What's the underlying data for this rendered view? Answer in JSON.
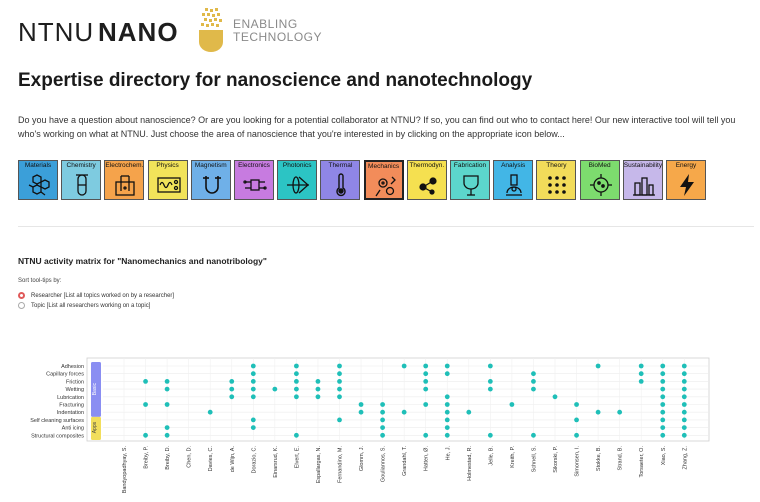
{
  "logo": {
    "ntnu": "NTNU",
    "nano": "NANO",
    "tagline_line1": "ENABLING",
    "tagline_line2": "TECHNOLOGY"
  },
  "page": {
    "title": "Expertise directory for nanoscience and nanotechnology",
    "intro": "Do you have a question about nanoscience? Or are you looking for a potential collaborator at NTNU? If so, you can find out who to contact here! Our new interactive tool will tell you who's working on what at NTNU. Just choose the area of nanoscience that you're interested in by clicking on the appropriate icon below..."
  },
  "areas": [
    {
      "label": "Materials",
      "color": "#3b9fd9",
      "icon": "hexagon-lattice-icon"
    },
    {
      "label": "Chemistry",
      "color": "#7ecbe0",
      "icon": "test-tube-icon"
    },
    {
      "label": "Electrochem.",
      "color": "#f5a34b",
      "icon": "electrochemical-cell-icon"
    },
    {
      "label": "Physics",
      "color": "#f2e35a",
      "icon": "oscilloscope-icon"
    },
    {
      "label": "Magnetism",
      "color": "#6fb0e8",
      "icon": "magnet-icon"
    },
    {
      "label": "Electronics",
      "color": "#c77be0",
      "icon": "circuit-icon"
    },
    {
      "label": "Photonics",
      "color": "#2cc4c4",
      "icon": "lens-beam-icon"
    },
    {
      "label": "Thermal",
      "color": "#8f86e6",
      "icon": "thermometer-icon"
    },
    {
      "label": "Mechanics",
      "color": "#f28c5a",
      "icon": "gears-icon"
    },
    {
      "label": "Thermodyn.",
      "color": "#f5e050",
      "icon": "molecules-icon"
    },
    {
      "label": "Fabrication",
      "color": "#5cd6cc",
      "icon": "wafer-icon"
    },
    {
      "label": "Analysis",
      "color": "#42b6e6",
      "icon": "microscope-icon"
    },
    {
      "label": "Theory",
      "color": "#f2dc5a",
      "icon": "dot-grid-icon"
    },
    {
      "label": "BioMed",
      "color": "#7ddc6e",
      "icon": "virus-icon"
    },
    {
      "label": "Sustainability",
      "color": "#c6b8ea",
      "icon": "city-icon"
    },
    {
      "label": "Energy",
      "color": "#f6a84a",
      "icon": "lightning-icon"
    }
  ],
  "active_area": "Mechanics",
  "matrix": {
    "title": "NTNU activity matrix for \"Nanomechanics and nanotribology\"",
    "sort_label": "Sort tool-tips by:",
    "options": [
      {
        "label": "Researcher [List all topics worked on by a researcher]",
        "selected": true
      },
      {
        "label": "Topic [List all researchers working on a topic]",
        "selected": false
      }
    ],
    "group_labels": {
      "basic": "Basic",
      "apps": "Apps"
    },
    "colors": {
      "dot": "#1fbfb8",
      "basic": "#8a8ef2",
      "apps": "#f2de5c"
    }
  },
  "chart_data": {
    "type": "scatter",
    "title": "NTNU activity matrix for \"Nanomechanics and nanotribology\"",
    "topics": [
      "Adhesion",
      "Capillary forces",
      "Friction",
      "Wetting",
      "Lubrication",
      "Fracturing",
      "Indentation",
      "Self cleaning surfaces",
      "Anti icing",
      "Structural composites"
    ],
    "topic_groups": {
      "Basic": [
        "Adhesion",
        "Capillary forces",
        "Friction",
        "Wetting",
        "Lubrication",
        "Fracturing",
        "Indentation"
      ],
      "Apps": [
        "Self cleaning surfaces",
        "Anti icing",
        "Structural composites"
      ]
    },
    "researchers": [
      "Bandyopadhyay, S.",
      "Breiby, P.",
      "Breiby, D.",
      "Chen, D.",
      "Davies, C.",
      "de Wijn, A.",
      "Dorazio, C.",
      "Einarsrud, K.",
      "Elvert, E.",
      "Espallargas, N.",
      "Fernandino, M.",
      "Glomm, J.",
      "Gouliannos, S.",
      "Grandahl, T.",
      "Hatten, Ø.",
      "He, J.",
      "Holmestad, R.",
      "Jelle, B.",
      "Kreith, P.",
      "Schnell, S.",
      "Sikorski, P.",
      "Simonsen, I.",
      "Stokke, B.",
      "Strand, B.",
      "Torsaeter, O.",
      "Xiao, S.",
      "Zhang, Z."
    ],
    "points": [
      [
        "Breiby, P.",
        2
      ],
      [
        "Breiby, P.",
        5
      ],
      [
        "Breiby, P.",
        9
      ],
      [
        "Breiby, D.",
        2
      ],
      [
        "Breiby, D.",
        3
      ],
      [
        "Breiby, D.",
        5
      ],
      [
        "Breiby, D.",
        8
      ],
      [
        "Breiby, D.",
        9
      ],
      [
        "Davies, C.",
        6
      ],
      [
        "de Wijn, A.",
        2
      ],
      [
        "de Wijn, A.",
        3
      ],
      [
        "de Wijn, A.",
        4
      ],
      [
        "Dorazio, C.",
        0
      ],
      [
        "Dorazio, C.",
        1
      ],
      [
        "Dorazio, C.",
        2
      ],
      [
        "Dorazio, C.",
        3
      ],
      [
        "Dorazio, C.",
        4
      ],
      [
        "Dorazio, C.",
        7
      ],
      [
        "Dorazio, C.",
        8
      ],
      [
        "Einarsrud, K.",
        3
      ],
      [
        "Elvert, E.",
        0
      ],
      [
        "Elvert, E.",
        1
      ],
      [
        "Elvert, E.",
        2
      ],
      [
        "Elvert, E.",
        3
      ],
      [
        "Elvert, E.",
        4
      ],
      [
        "Elvert, E.",
        9
      ],
      [
        "Espallargas, N.",
        2
      ],
      [
        "Espallargas, N.",
        3
      ],
      [
        "Espallargas, N.",
        4
      ],
      [
        "Fernandino, M.",
        0
      ],
      [
        "Fernandino, M.",
        1
      ],
      [
        "Fernandino, M.",
        2
      ],
      [
        "Fernandino, M.",
        3
      ],
      [
        "Fernandino, M.",
        4
      ],
      [
        "Fernandino, M.",
        7
      ],
      [
        "Glomm, J.",
        5
      ],
      [
        "Glomm, J.",
        6
      ],
      [
        "Gouliannos, S.",
        5
      ],
      [
        "Gouliannos, S.",
        6
      ],
      [
        "Gouliannos, S.",
        7
      ],
      [
        "Gouliannos, S.",
        8
      ],
      [
        "Gouliannos, S.",
        9
      ],
      [
        "Grandahl, T.",
        0
      ],
      [
        "Grandahl, T.",
        6
      ],
      [
        "Hatten, Ø.",
        0
      ],
      [
        "Hatten, Ø.",
        1
      ],
      [
        "Hatten, Ø.",
        2
      ],
      [
        "Hatten, Ø.",
        3
      ],
      [
        "Hatten, Ø.",
        5
      ],
      [
        "Hatten, Ø.",
        9
      ],
      [
        "He, J.",
        0
      ],
      [
        "He, J.",
        1
      ],
      [
        "He, J.",
        4
      ],
      [
        "He, J.",
        5
      ],
      [
        "He, J.",
        6
      ],
      [
        "He, J.",
        7
      ],
      [
        "He, J.",
        8
      ],
      [
        "He, J.",
        9
      ],
      [
        "Holmestad, R.",
        6
      ],
      [
        "Jelle, B.",
        0
      ],
      [
        "Jelle, B.",
        2
      ],
      [
        "Jelle, B.",
        3
      ],
      [
        "Jelle, B.",
        9
      ],
      [
        "Kreith, P.",
        5
      ],
      [
        "Schnell, S.",
        1
      ],
      [
        "Schnell, S.",
        2
      ],
      [
        "Schnell, S.",
        3
      ],
      [
        "Schnell, S.",
        9
      ],
      [
        "Sikorski, P.",
        4
      ],
      [
        "Simonsen, I.",
        5
      ],
      [
        "Simonsen, I.",
        7
      ],
      [
        "Simonsen, I.",
        9
      ],
      [
        "Stokke, B.",
        0
      ],
      [
        "Stokke, B.",
        6
      ],
      [
        "Strand, B.",
        6
      ],
      [
        "Torsaeter, O.",
        0
      ],
      [
        "Torsaeter, O.",
        1
      ],
      [
        "Torsaeter, O.",
        2
      ],
      [
        "Xiao, S.",
        0
      ],
      [
        "Xiao, S.",
        1
      ],
      [
        "Xiao, S.",
        2
      ],
      [
        "Xiao, S.",
        3
      ],
      [
        "Xiao, S.",
        4
      ],
      [
        "Xiao, S.",
        5
      ],
      [
        "Xiao, S.",
        6
      ],
      [
        "Xiao, S.",
        7
      ],
      [
        "Xiao, S.",
        8
      ],
      [
        "Xiao, S.",
        9
      ],
      [
        "Zhang, Z.",
        0
      ],
      [
        "Zhang, Z.",
        1
      ],
      [
        "Zhang, Z.",
        2
      ],
      [
        "Zhang, Z.",
        3
      ],
      [
        "Zhang, Z.",
        4
      ],
      [
        "Zhang, Z.",
        5
      ],
      [
        "Zhang, Z.",
        6
      ],
      [
        "Zhang, Z.",
        7
      ],
      [
        "Zhang, Z.",
        8
      ],
      [
        "Zhang, Z.",
        9
      ]
    ],
    "grid": true,
    "legend": "none"
  }
}
